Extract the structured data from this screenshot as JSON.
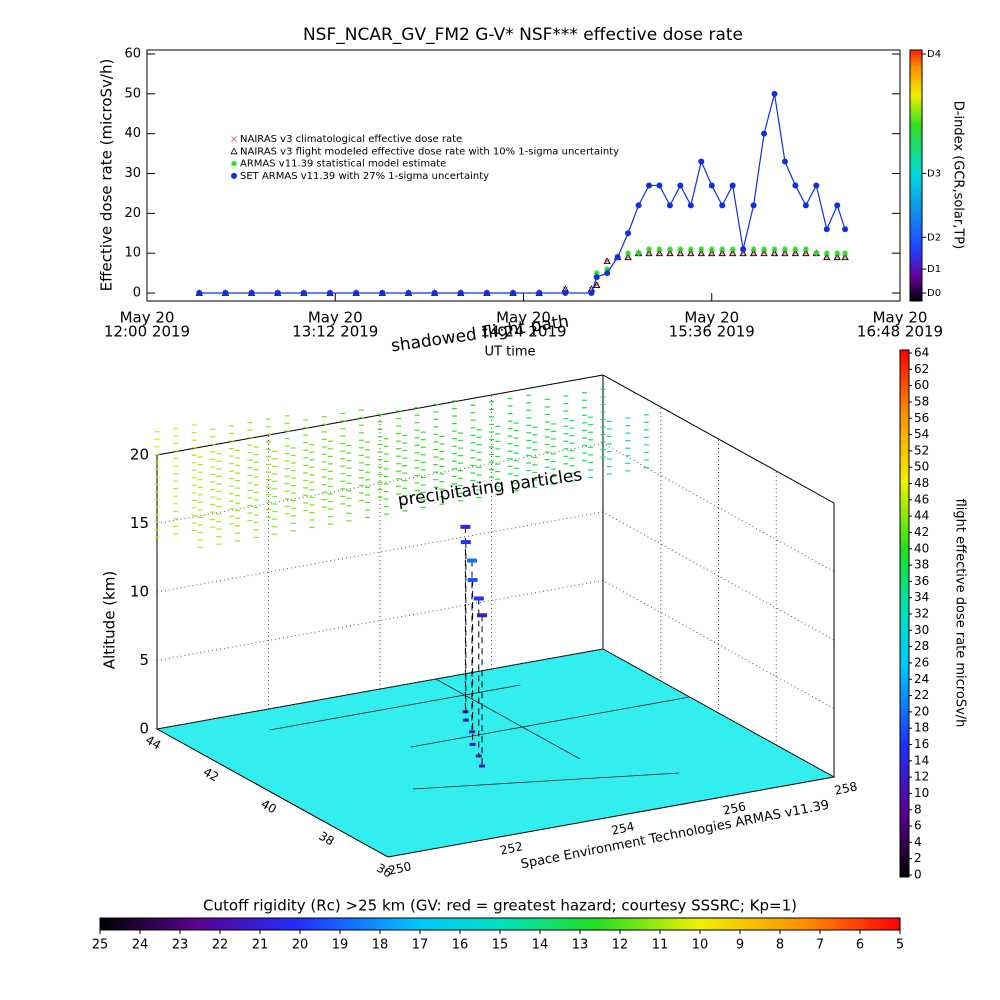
{
  "chart_data": [
    {
      "type": "line",
      "title": "NSF_NCAR_GV_FM2 G-V* NSF*** effective dose rate",
      "y_label": "Effective dose rate (microSv/h)",
      "x_label": "UT time",
      "xlim": [
        0,
        288
      ],
      "xticks": [
        {
          "value": 0,
          "label": [
            "May 20",
            "12:00 2019"
          ]
        },
        {
          "value": 72,
          "label": [
            "May 20",
            "13:12 2019"
          ]
        },
        {
          "value": 144,
          "label": [
            "May 20",
            "14:24 2019"
          ]
        },
        {
          "value": 216,
          "label": [
            "May 20",
            "15:36 2019"
          ]
        },
        {
          "value": 288,
          "label": [
            "May 20",
            "16:48 2019"
          ]
        }
      ],
      "ylim": [
        -2,
        61
      ],
      "yticks": [
        0,
        10,
        20,
        30,
        40,
        50,
        60
      ],
      "x": [
        20,
        30,
        40,
        50,
        60,
        70,
        80,
        90,
        100,
        110,
        120,
        130,
        140,
        150,
        160,
        170,
        172,
        176,
        180,
        184,
        188,
        192,
        196,
        200,
        204,
        208,
        212,
        216,
        220,
        224,
        228,
        232,
        236,
        240,
        244,
        248,
        252,
        256,
        260,
        264,
        267
      ],
      "series": [
        {
          "name": "NAIRAS v3 climatological effective dose rate",
          "color": "#e07070",
          "marker": "x",
          "values": [
            0,
            0,
            0,
            0,
            0,
            0,
            0,
            0,
            0,
            0,
            0,
            0,
            0,
            0,
            1,
            1,
            2,
            8,
            9,
            9,
            10,
            10,
            10,
            10,
            10,
            10,
            10,
            10,
            10,
            10,
            10,
            10,
            10,
            10,
            10,
            10,
            10,
            10,
            9,
            9,
            9
          ]
        },
        {
          "name": "NAIRAS v3 flight modeled effective dose rate with 10% 1-sigma uncertainty",
          "color": "#000000",
          "marker": "triangle",
          "values": [
            0,
            0,
            0,
            0,
            0,
            0,
            0,
            0,
            0,
            0,
            0,
            0,
            0,
            0,
            1,
            1,
            2,
            8,
            9,
            9,
            10,
            10,
            10,
            10,
            10,
            10,
            10,
            10,
            10,
            10,
            10,
            10,
            10,
            10,
            10,
            10,
            10,
            10,
            9,
            9,
            9
          ]
        },
        {
          "name": "ARMAS v11.39 statistical model estimate",
          "color": "#22dd22",
          "marker": "star",
          "values": [
            null,
            null,
            null,
            null,
            null,
            null,
            null,
            null,
            null,
            null,
            null,
            null,
            null,
            null,
            null,
            null,
            5,
            6,
            9,
            10,
            10,
            11,
            11,
            11,
            11,
            11,
            11,
            11,
            11,
            11,
            11,
            11,
            11,
            11,
            11,
            11,
            11,
            10,
            10,
            10,
            10
          ]
        },
        {
          "name": "SET ARMAS v11.39 with 27% 1-sigma uncertainty",
          "color": "#1030e0",
          "marker": "circle",
          "connected": true,
          "values": [
            0,
            0,
            0,
            0,
            0,
            0,
            0,
            0,
            0,
            0,
            0,
            0,
            0,
            0,
            0,
            0,
            4,
            5,
            9,
            15,
            22,
            27,
            27,
            22,
            27,
            22,
            33,
            27,
            22,
            27,
            11,
            22,
            40,
            50,
            33,
            27,
            22,
            27,
            16,
            22,
            16
          ]
        }
      ],
      "d_index": {
        "label": "D-index (GCR,solar,TP)",
        "ticks": [
          {
            "value": 0,
            "label": "D0"
          },
          {
            "value": 6,
            "label": "D1"
          },
          {
            "value": 14,
            "label": "D2"
          },
          {
            "value": 30,
            "label": "D3"
          },
          {
            "value": 60,
            "label": "D4"
          }
        ]
      }
    },
    {
      "type": "scatter3d",
      "z_label": "Altitude (km)",
      "zlim": [
        0,
        20
      ],
      "zticks": [
        0,
        5,
        10,
        15,
        20
      ],
      "latlim": [
        36,
        44
      ],
      "latticks": [
        44,
        42,
        40,
        38,
        36
      ],
      "lonlim": [
        250,
        258
      ],
      "lonticks": [
        250,
        252,
        254,
        256,
        258
      ],
      "floor_color": "#33eeee",
      "annotations": [
        "shadowed flight path",
        "precipitating particles",
        "Space Environment Technologies ARMAS v11.39"
      ],
      "path": {
        "lon": [
          254.6,
          254.4,
          254.2,
          253.9,
          253.7,
          253.5
        ],
        "lat": [
          42.2,
          41.8,
          41.2,
          40.6,
          40.0,
          39.5
        ],
        "alt": [
          13.5,
          13,
          12.5,
          12,
          11.5,
          11
        ],
        "dose": [
          14,
          16,
          20,
          18,
          16,
          12
        ]
      },
      "colorbar": {
        "label": "flight effective dose rate microSv/h",
        "lim": [
          0,
          64
        ],
        "ticks": [
          0,
          2,
          4,
          6,
          8,
          10,
          12,
          14,
          16,
          18,
          20,
          22,
          24,
          26,
          28,
          30,
          32,
          34,
          36,
          38,
          40,
          42,
          44,
          46,
          48,
          50,
          52,
          54,
          56,
          58,
          60,
          62,
          64
        ]
      },
      "rc_colorbar": {
        "label": "Cutoff rigidity (Rc) >25 km (GV: red = greatest hazard; courtesy SSSRC; Kp=1)",
        "lim": [
          25,
          5
        ],
        "ticks": [
          25,
          24,
          23,
          22,
          21,
          20,
          19,
          18,
          17,
          16,
          15,
          14,
          13,
          12,
          11,
          10,
          9,
          8,
          7,
          6,
          5
        ]
      }
    }
  ]
}
